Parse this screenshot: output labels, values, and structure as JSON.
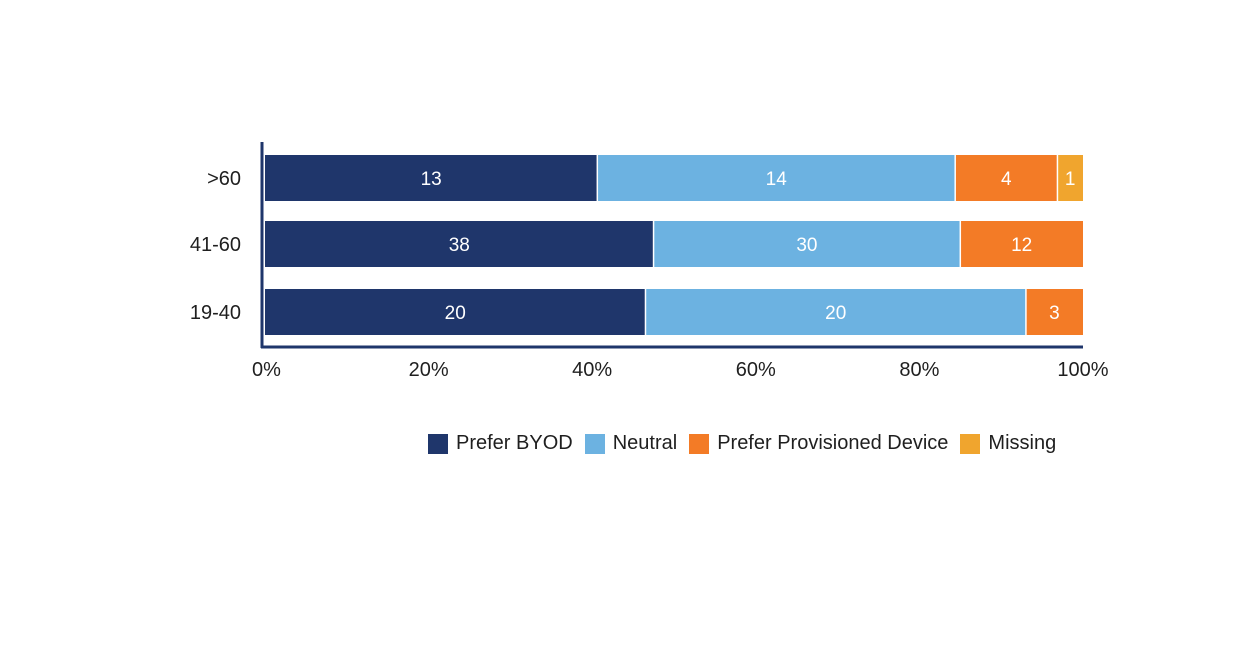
{
  "chart_data": {
    "type": "bar",
    "orientation": "horizontal",
    "stacked": "percent",
    "categories": [
      ">60",
      "41-60",
      "19-40"
    ],
    "series": [
      {
        "name": "Prefer BYOD",
        "color": "#1f366b",
        "values": [
          13,
          38,
          20
        ]
      },
      {
        "name": "Neutral",
        "color": "#6cb2e1",
        "values": [
          14,
          30,
          20
        ]
      },
      {
        "name": "Prefer Provisioned Device",
        "color": "#f37b26",
        "values": [
          4,
          12,
          3
        ]
      },
      {
        "name": "Missing",
        "color": "#f0a52e",
        "values": [
          1,
          0,
          0
        ]
      }
    ],
    "xticks": [
      "0%",
      "20%",
      "40%",
      "60%",
      "80%",
      "100%"
    ],
    "xlim": [
      0,
      100
    ],
    "grid": false,
    "legend_position": "bottom",
    "axis_color": "#1f366b"
  }
}
